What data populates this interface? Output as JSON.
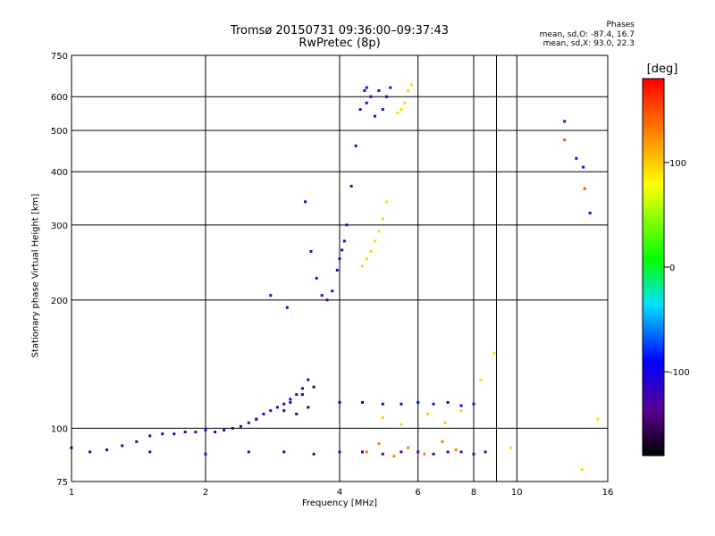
{
  "chart_data": {
    "type": "scatter",
    "title": "Tromsø 20150731 09:36:00–09:37:43",
    "subtitle": "RwPretec (8p)",
    "xlabel": "Frequency [MHz]",
    "ylabel": "Stationary phase Virtual Height [km]",
    "x_scale": "log",
    "y_scale": "log",
    "xlim": [
      1,
      16
    ],
    "ylim": [
      75,
      750
    ],
    "x_ticks": [
      1,
      2,
      4,
      6,
      8,
      10,
      16
    ],
    "x_grid": [
      1,
      2,
      4,
      6,
      8,
      9,
      10,
      16
    ],
    "y_ticks": [
      75,
      100,
      200,
      300,
      400,
      500,
      600,
      750
    ],
    "grid": true,
    "phases_info": {
      "heading": "Phases",
      "o_line": "mean, sd,O: -87.4, 16.7",
      "x_line": "mean, sd,X: 93.0, 22.3"
    },
    "colorbar": {
      "unit": "[deg]",
      "range": [
        -180,
        180
      ],
      "ticks": [
        100,
        0,
        -100
      ],
      "colormap": "rainbow (black → purple → blue → cyan → green → yellow → red)"
    },
    "series": [
      {
        "segments": [
          {
            "x": [
              1.0,
              1.1,
              1.2,
              1.3,
              1.4,
              1.5,
              1.6,
              1.7,
              1.8,
              1.9,
              2.0,
              2.1,
              2.2,
              2.3,
              2.4,
              2.5,
              2.6
            ],
            "y": [
              90,
              88,
              89,
              91,
              93,
              96,
              97,
              97,
              98,
              98,
              99,
              98,
              99,
              100,
              101,
              103,
              105
            ],
            "phase": -120
          },
          {
            "x": [
              2.6,
              2.7,
              2.8,
              2.9,
              3.0,
              3.1,
              3.2,
              3.3,
              3.4
            ],
            "y": [
              105,
              108,
              110,
              112,
              114,
              117,
              120,
              124,
              130
            ],
            "phase": -110
          },
          {
            "x": [
              3.35,
              3.45,
              3.55,
              3.65,
              3.75,
              3.85,
              3.95,
              4.0,
              4.05,
              4.1,
              4.15,
              4.25,
              4.35,
              4.45,
              4.55,
              4.6
            ],
            "y": [
              340,
              260,
              225,
              205,
              200,
              210,
              235,
              250,
              262,
              275,
              300,
              370,
              460,
              560,
              620,
              630
            ],
            "phase": -120
          },
          {
            "x": [
              4.6,
              4.7,
              4.8,
              4.9,
              5.0,
              5.1,
              5.2
            ],
            "y": [
              580,
              600,
              540,
              620,
              560,
              600,
              630
            ],
            "phase": -115
          },
          {
            "x": [
              4.5,
              4.6,
              4.7,
              4.8,
              4.9,
              5.0,
              5.1
            ],
            "y": [
              240,
              250,
              260,
              275,
              290,
              310,
              340
            ],
            "phase": 95
          },
          {
            "x": [
              5.4,
              5.5,
              5.6,
              5.7,
              5.8
            ],
            "y": [
              550,
              560,
              580,
              620,
              640
            ],
            "phase": 95
          },
          {
            "x": [
              2.8,
              3.05
            ],
            "y": [
              205,
              192
            ],
            "phase": -120
          },
          {
            "x": [
              4.0,
              4.5,
              5.0,
              5.5,
              6.0,
              6.5,
              7.0,
              7.5,
              8.0
            ],
            "y": [
              115,
              115,
              114,
              114,
              115,
              114,
              115,
              113,
              114
            ],
            "phase": -100
          },
          {
            "x": [
              3.0,
              3.1,
              3.2,
              3.3,
              3.4,
              3.5
            ],
            "y": [
              110,
              115,
              108,
              120,
              112,
              125
            ],
            "phase": -150
          },
          {
            "x": [
              1.5,
              2.0,
              2.5,
              3.0,
              3.5,
              4.0,
              4.5,
              5.0,
              5.5,
              6.0,
              6.5,
              7.0,
              7.5,
              8.0,
              8.5
            ],
            "y": [
              88,
              87,
              88,
              88,
              87,
              88,
              88,
              87,
              88,
              88,
              87,
              88,
              88,
              87,
              88
            ],
            "phase": -130
          },
          {
            "x": [
              4.6,
              4.9,
              5.3,
              5.7,
              6.2,
              6.8,
              7.3
            ],
            "y": [
              88,
              92,
              86,
              90,
              87,
              93,
              89
            ],
            "phase": 130
          },
          {
            "x": [
              5.0,
              5.5,
              6.3,
              6.9,
              7.5
            ],
            "y": [
              106,
              102,
              108,
              103,
              110
            ],
            "phase": 100
          },
          {
            "x": [
              12.8,
              13.6,
              14.1,
              14.6
            ],
            "y": [
              525,
              430,
              410,
              320
            ],
            "phase": -110
          },
          {
            "x": [
              12.8,
              14.2
            ],
            "y": [
              475,
              365
            ],
            "phase": 150
          },
          {
            "x": [
              8.3,
              8.9,
              9.7,
              14.0,
              15.2
            ],
            "y": [
              130,
              150,
              90,
              80,
              105
            ],
            "phase": 60
          }
        ]
      }
    ]
  }
}
